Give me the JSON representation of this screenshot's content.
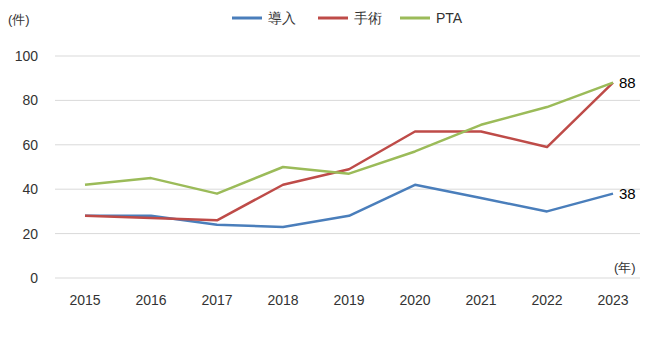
{
  "chart_data": {
    "type": "line",
    "y_label": "(件)",
    "x_label": "(年)",
    "categories": [
      "2015",
      "2016",
      "2017",
      "2018",
      "2019",
      "2020",
      "2021",
      "2022",
      "2023"
    ],
    "series": [
      {
        "name": "導入",
        "color": "#4a7ebb",
        "values": [
          28,
          28,
          24,
          23,
          28,
          42,
          36,
          30,
          38
        ],
        "value_labels": [
          null,
          null,
          null,
          null,
          null,
          null,
          null,
          null,
          "38"
        ]
      },
      {
        "name": "手術",
        "color": "#be4b48",
        "values": [
          28,
          27,
          26,
          42,
          49,
          66,
          66,
          59,
          88
        ],
        "value_labels": [
          null,
          null,
          null,
          null,
          null,
          null,
          null,
          null,
          "88"
        ]
      },
      {
        "name": "PTA",
        "color": "#9bbb59",
        "values": [
          42,
          45,
          38,
          50,
          47,
          57,
          69,
          77,
          88
        ]
      }
    ],
    "ylim": [
      0,
      100
    ],
    "yticks": [
      0,
      20,
      40,
      60,
      80,
      100
    ],
    "grid": true,
    "legend": "top"
  }
}
